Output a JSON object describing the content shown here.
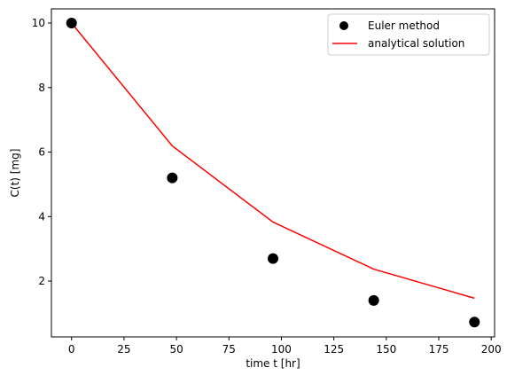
{
  "chart_data": {
    "type": "line",
    "title": "",
    "xlabel": "time t [hr]",
    "ylabel": "C(t) [mg]",
    "xlim": [
      -9.6,
      201.6
    ],
    "ylim": [
      0.27,
      10.44
    ],
    "xticks": [
      0,
      25,
      50,
      75,
      100,
      125,
      150,
      175,
      200
    ],
    "yticks": [
      2,
      4,
      6,
      8,
      10
    ],
    "grid": false,
    "legend_position": "top-right",
    "series": [
      {
        "name": "Euler method",
        "kind": "scatter",
        "color": "#000000",
        "x": [
          0,
          48,
          96,
          144,
          192
        ],
        "y": [
          10.0,
          5.2,
          2.7,
          1.4,
          0.73
        ]
      },
      {
        "name": "analytical solution",
        "kind": "line",
        "color": "#ff0000",
        "x": [
          0,
          48,
          96,
          144,
          192
        ],
        "y": [
          10.0,
          6.19,
          3.83,
          2.37,
          1.47
        ]
      }
    ]
  }
}
